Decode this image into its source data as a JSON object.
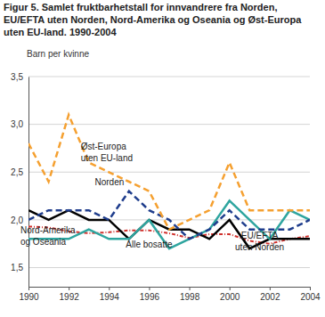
{
  "chart_data": {
    "type": "line",
    "title": "Figur 5. Samlet fruktbarhetstall for innvandrere fra Norden, EU/EFTA uten Norden, Nord-Amerika og Oseania og Øst-Europa uten EU-land. 1990-2004",
    "y_label": "Barn per kvinne",
    "x": [
      1990,
      1991,
      1992,
      1993,
      1994,
      1995,
      1996,
      1997,
      1998,
      1999,
      2000,
      2001,
      2002,
      2003,
      2004
    ],
    "series": [
      {
        "name": "Øst-Europa uten EU-land",
        "color": "#f5a030",
        "line_style": "dashed",
        "values": [
          2.8,
          2.4,
          3.1,
          2.6,
          2.5,
          2.4,
          2.3,
          1.9,
          2.0,
          2.1,
          2.6,
          2.1,
          2.1,
          2.1,
          2.1
        ]
      },
      {
        "name": "Norden",
        "color": "#1f3d8c",
        "line_style": "dashed",
        "values": [
          2.0,
          2.1,
          2.1,
          2.1,
          2.0,
          2.3,
          2.1,
          2.0,
          1.8,
          1.9,
          2.1,
          1.9,
          1.9,
          1.9,
          2.0
        ]
      },
      {
        "name": "Nord-Amerika og Oseania",
        "color": "#2ea59f",
        "line_style": "solid",
        "values": [
          1.8,
          1.8,
          1.8,
          1.9,
          1.8,
          1.8,
          2.0,
          1.7,
          1.8,
          1.9,
          2.2,
          2.0,
          1.8,
          2.1,
          2.0
        ]
      },
      {
        "name": "EU/EFTA uten Norden",
        "color": "#000000",
        "line_style": "solid",
        "values": [
          2.1,
          2.0,
          2.1,
          2.0,
          2.0,
          1.8,
          2.0,
          1.9,
          1.9,
          1.8,
          2.0,
          1.7,
          1.8,
          1.8,
          1.8
        ]
      },
      {
        "name": "Alle bosatte",
        "color": "#d0312d",
        "line_style": "dotted",
        "values": [
          1.93,
          1.92,
          1.88,
          1.86,
          1.87,
          1.89,
          1.89,
          1.86,
          1.81,
          1.85,
          1.85,
          1.78,
          1.75,
          1.8,
          1.83
        ]
      }
    ],
    "xlim": [
      1990,
      2004
    ],
    "xticks": [
      1990,
      1992,
      1994,
      1996,
      1998,
      2000,
      2002,
      2004
    ],
    "ylim": [
      1.3,
      3.5
    ],
    "yticks": [
      {
        "value": 1.5,
        "label": "1,5"
      },
      {
        "value": 2.0,
        "label": "2,0"
      },
      {
        "value": 2.5,
        "label": "2,5"
      },
      {
        "value": 3.0,
        "label": "3,0"
      },
      {
        "value": 3.5,
        "label": "3,5"
      }
    ],
    "grid": true
  }
}
